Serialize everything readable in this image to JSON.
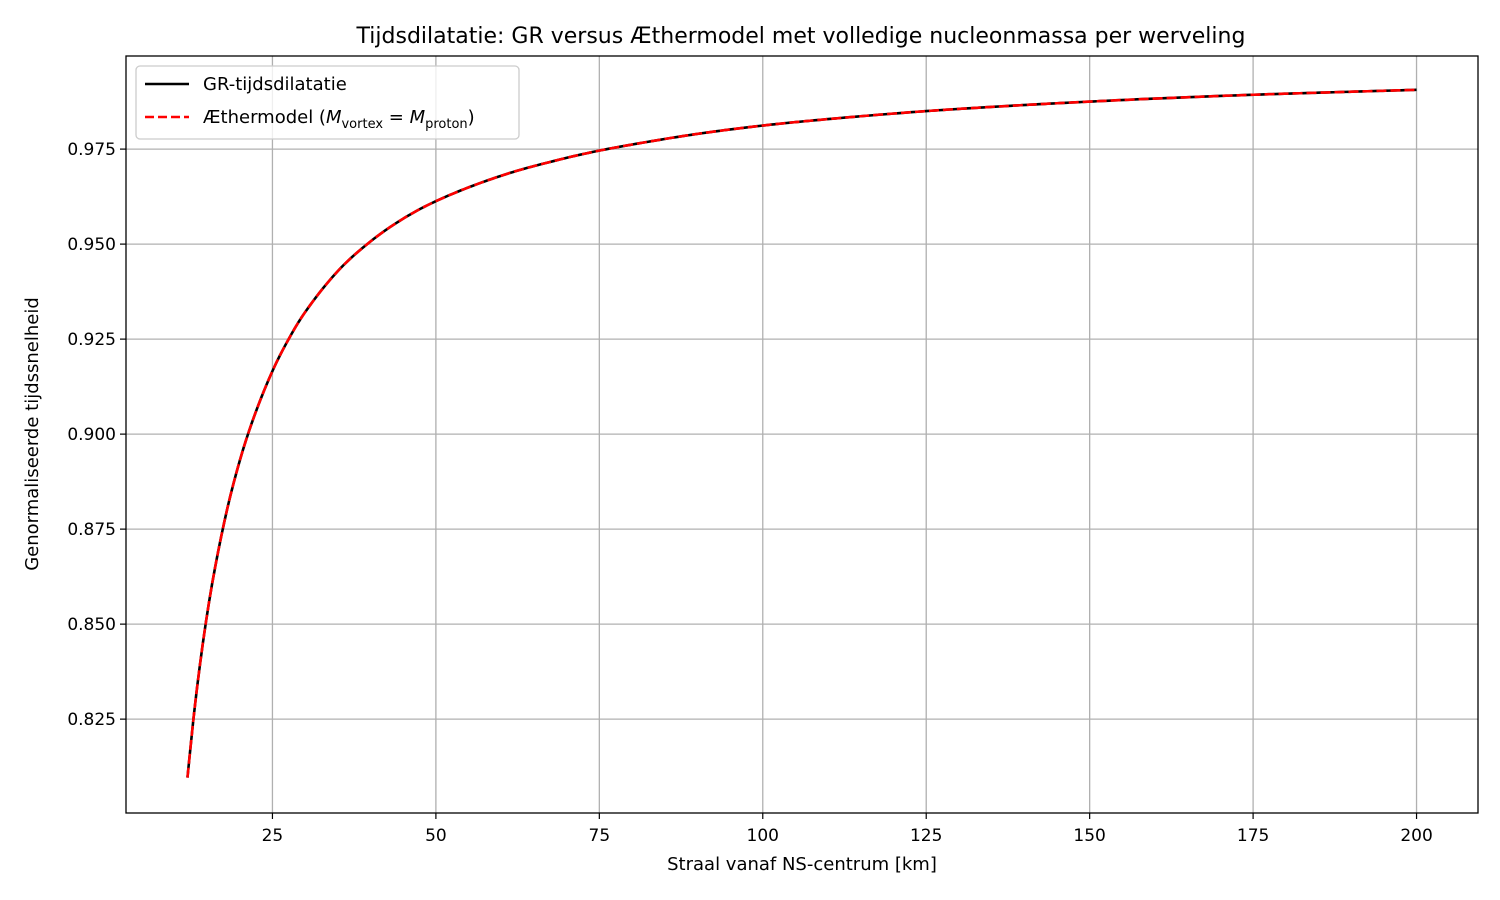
{
  "chart_data": {
    "type": "line",
    "title": "Tijdsdilatatie: GR versus Æthermodel met volledige nucleonmassa per werveling",
    "xlabel": "Straal vanaf NS-centrum [km]",
    "ylabel": "Genormaliseerde tijdssnelheid",
    "xlim": [
      2.6,
      209.4
    ],
    "ylim": [
      0.8003,
      0.9995
    ],
    "xticks": [
      25,
      50,
      75,
      100,
      125,
      150,
      175,
      200
    ],
    "yticks": [
      0.825,
      0.85,
      0.875,
      0.9,
      0.925,
      0.95,
      0.975
    ],
    "xtick_labels": [
      "25",
      "50",
      "75",
      "100",
      "125",
      "150",
      "175",
      "200"
    ],
    "ytick_labels": [
      "0.825",
      "0.850",
      "0.875",
      "0.900",
      "0.925",
      "0.950",
      "0.975"
    ],
    "grid": true,
    "legend_position": "top-left",
    "x_range_data": [
      12,
      200
    ],
    "series": [
      {
        "name": "GR-tijdsdilatatie",
        "color": "#000000",
        "style": "solid",
        "x": [
          12,
          13,
          14,
          15,
          16,
          18,
          20,
          22,
          25,
          28,
          30,
          35,
          40,
          45,
          50,
          60,
          70,
          75,
          80,
          90,
          100,
          110,
          125,
          140,
          150,
          160,
          175,
          190,
          200
        ],
        "y": [
          0.8096,
          0.8264,
          0.8405,
          0.8525,
          0.8628,
          0.8797,
          0.893,
          0.9037,
          0.9166,
          0.9266,
          0.9321,
          0.9429,
          0.9507,
          0.9567,
          0.9613,
          0.968,
          0.9727,
          0.9746,
          0.9762,
          0.979,
          0.9812,
          0.9829,
          0.985,
          0.9866,
          0.9875,
          0.9883,
          0.9893,
          0.9901,
          0.9906
        ]
      },
      {
        "name": "Æthermodel (Mvortex = Mproton)",
        "color": "#ff0000",
        "style": "dashed",
        "x": [
          12,
          13,
          14,
          15,
          16,
          18,
          20,
          22,
          25,
          28,
          30,
          35,
          40,
          45,
          50,
          60,
          70,
          75,
          80,
          90,
          100,
          110,
          125,
          140,
          150,
          160,
          175,
          190,
          200
        ],
        "y": [
          0.8096,
          0.8264,
          0.8405,
          0.8525,
          0.8628,
          0.8797,
          0.893,
          0.9037,
          0.9166,
          0.9266,
          0.9321,
          0.9429,
          0.9507,
          0.9567,
          0.9613,
          0.968,
          0.9727,
          0.9746,
          0.9762,
          0.979,
          0.9812,
          0.9829,
          0.985,
          0.9866,
          0.9875,
          0.9883,
          0.9893,
          0.9901,
          0.9906
        ]
      }
    ],
    "legend": {
      "entry1": "GR-tijdsdilatatie",
      "entry2_prefix": "Æthermodel (",
      "entry2_m1": "M",
      "entry2_sub1": "vortex",
      "entry2_eq": " = ",
      "entry2_m2": "M",
      "entry2_sub2": "proton",
      "entry2_suffix": ")"
    }
  }
}
